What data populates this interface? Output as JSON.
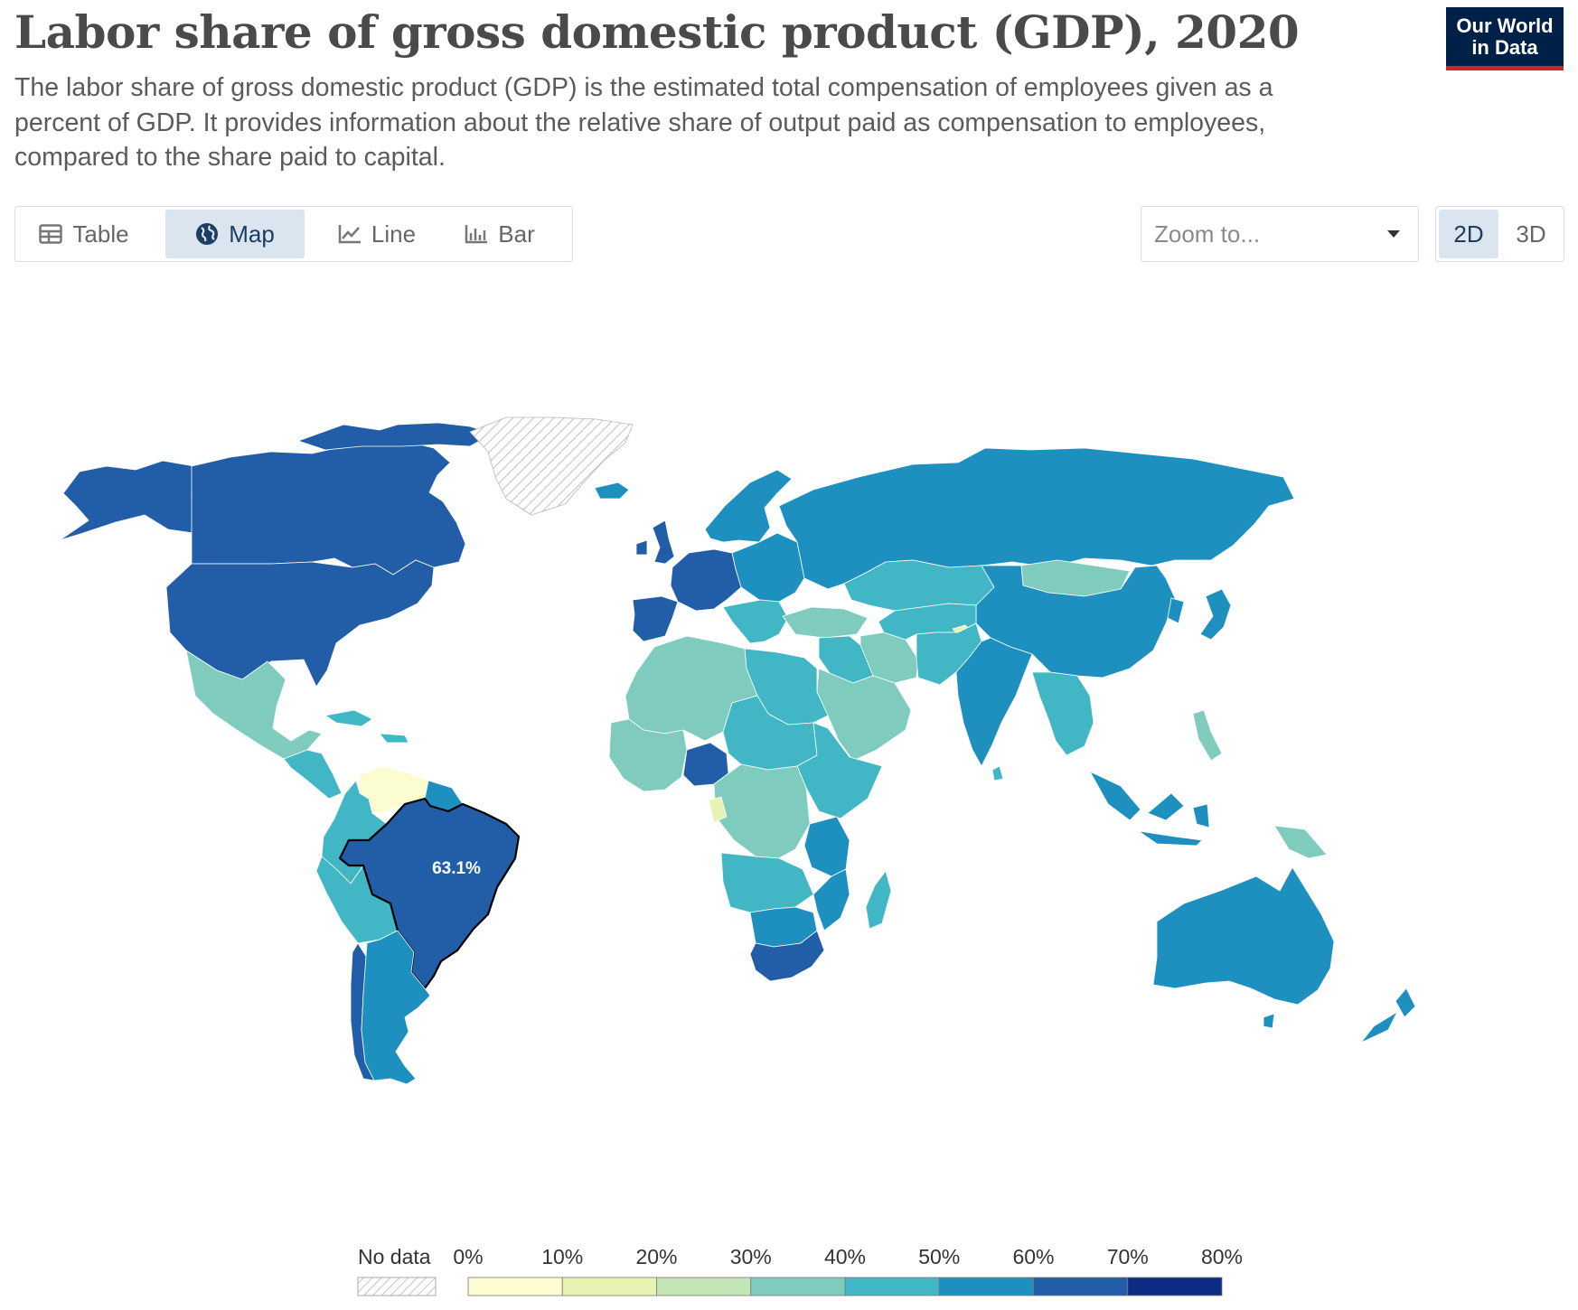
{
  "header": {
    "title": "Labor share of gross domestic product (GDP), 2020",
    "subtitle": "The labor share of gross domestic product (GDP) is the estimated total compensation of employees given as a percent of GDP. It provides information about the relative share of output paid as compensation to employees, compared to the share paid to capital.",
    "logo_line1": "Our World",
    "logo_line2": "in Data"
  },
  "tabs": [
    {
      "label": "Table",
      "icon": "table-icon",
      "active": false
    },
    {
      "label": "Map",
      "icon": "globe-icon",
      "active": true
    },
    {
      "label": "Line",
      "icon": "line-chart-icon",
      "active": false
    },
    {
      "label": "Bar",
      "icon": "bar-chart-icon",
      "active": false
    }
  ],
  "zoom": {
    "placeholder": "Zoom to..."
  },
  "view_toggle": {
    "active": "2D",
    "inactive": "3D"
  },
  "chart_data": {
    "type": "choropleth",
    "title": "Labor share of gross domestic product (GDP), 2020",
    "year": 2020,
    "unit": "%",
    "highlighted": {
      "country": "Brazil",
      "label": "63.1%",
      "value": 63.1
    },
    "legend": {
      "no_data_label": "No data",
      "bins": [
        0,
        10,
        20,
        30,
        40,
        50,
        60,
        70,
        80
      ],
      "bin_labels": [
        "0%",
        "10%",
        "20%",
        "30%",
        "40%",
        "50%",
        "60%",
        "70%",
        "80%"
      ],
      "colors": [
        "#fbfcd0",
        "#e6f3b1",
        "#c4e6b7",
        "#7fcbbd",
        "#41b6c4",
        "#1e90c0",
        "#225ea8",
        "#0c2c84"
      ]
    }
  }
}
